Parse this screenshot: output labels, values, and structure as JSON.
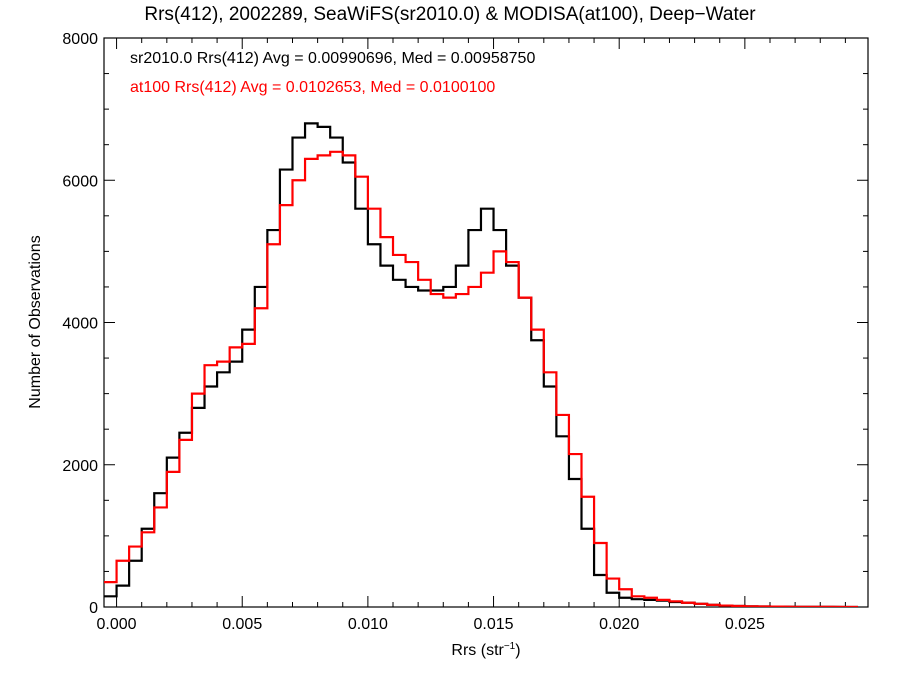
{
  "chart_data": {
    "type": "line",
    "title": "Rrs(412), 2002289, SeaWiFS(sr2010.0) & MODISA(at100), Deep−Water",
    "xlabel": "Rrs (str",
    "xlabel_sup": "−1",
    "xlabel_close": ")",
    "ylabel": "Number of Observations",
    "xlim": [
      -0.0005,
      0.0299
    ],
    "ylim": [
      0,
      8000
    ],
    "x_ticks": [
      {
        "value": 0.0,
        "label": "0.000"
      },
      {
        "value": 0.005,
        "label": "0.005"
      },
      {
        "value": 0.01,
        "label": "0.010"
      },
      {
        "value": 0.015,
        "label": "0.015"
      },
      {
        "value": 0.02,
        "label": "0.020"
      },
      {
        "value": 0.025,
        "label": "0.025"
      }
    ],
    "y_ticks": [
      {
        "value": 0,
        "label": "0"
      },
      {
        "value": 2000,
        "label": "2000"
      },
      {
        "value": 4000,
        "label": "4000"
      },
      {
        "value": 6000,
        "label": "6000"
      },
      {
        "value": 8000,
        "label": "8000"
      }
    ],
    "grid": false,
    "legend_position": "top-left",
    "annotations": [
      {
        "text": "sr2010.0 Rrs(412) Avg = 0.00990696, Med = 0.00958750",
        "color": "#000000"
      },
      {
        "text": "at100 Rrs(412) Avg = 0.0102653, Med = 0.0100100",
        "color": "#ff0000"
      }
    ],
    "series": [
      {
        "name": "sr2010.0",
        "color": "#000000",
        "x": [
          -0.0005,
          0.0,
          0.0005,
          0.001,
          0.0015,
          0.002,
          0.0025,
          0.003,
          0.0035,
          0.004,
          0.0045,
          0.005,
          0.0055,
          0.006,
          0.0065,
          0.007,
          0.0075,
          0.008,
          0.0085,
          0.009,
          0.0095,
          0.01,
          0.0105,
          0.011,
          0.0115,
          0.012,
          0.0125,
          0.013,
          0.0135,
          0.014,
          0.0145,
          0.015,
          0.0155,
          0.016,
          0.0165,
          0.017,
          0.0175,
          0.018,
          0.0185,
          0.019,
          0.0195,
          0.02,
          0.0205,
          0.021,
          0.0215,
          0.022,
          0.0225,
          0.023,
          0.0235,
          0.024,
          0.0245,
          0.025,
          0.0255,
          0.026,
          0.027,
          0.028,
          0.029
        ],
        "y": [
          150,
          300,
          650,
          1100,
          1600,
          2100,
          2450,
          2800,
          3100,
          3300,
          3450,
          3900,
          4500,
          5300,
          6150,
          6600,
          6800,
          6750,
          6600,
          6250,
          5600,
          5100,
          4800,
          4600,
          4500,
          4450,
          4450,
          4500,
          4800,
          5300,
          5600,
          5300,
          4800,
          4350,
          3750,
          3100,
          2400,
          1800,
          1100,
          450,
          200,
          130,
          110,
          100,
          90,
          70,
          60,
          45,
          30,
          20,
          15,
          10,
          8,
          5,
          3,
          2,
          1
        ]
      },
      {
        "name": "at100",
        "color": "#ff0000",
        "x": [
          -0.0005,
          0.0,
          0.0005,
          0.001,
          0.0015,
          0.002,
          0.0025,
          0.003,
          0.0035,
          0.004,
          0.0045,
          0.005,
          0.0055,
          0.006,
          0.0065,
          0.007,
          0.0075,
          0.008,
          0.0085,
          0.009,
          0.0095,
          0.01,
          0.0105,
          0.011,
          0.0115,
          0.012,
          0.0125,
          0.013,
          0.0135,
          0.014,
          0.0145,
          0.015,
          0.0155,
          0.016,
          0.0165,
          0.017,
          0.0175,
          0.018,
          0.0185,
          0.019,
          0.0195,
          0.02,
          0.0205,
          0.021,
          0.0215,
          0.022,
          0.0225,
          0.023,
          0.0235,
          0.024,
          0.0245,
          0.025,
          0.0255,
          0.026,
          0.027,
          0.028,
          0.029
        ],
        "y": [
          350,
          650,
          850,
          1050,
          1400,
          1900,
          2350,
          3000,
          3400,
          3450,
          3650,
          3700,
          4200,
          5100,
          5650,
          6000,
          6300,
          6350,
          6400,
          6350,
          6050,
          5600,
          5200,
          4950,
          4850,
          4600,
          4400,
          4350,
          4400,
          4500,
          4700,
          5000,
          4850,
          4350,
          3900,
          3300,
          2700,
          2150,
          1550,
          900,
          400,
          250,
          150,
          130,
          100,
          80,
          60,
          45,
          30,
          20,
          15,
          10,
          8,
          5,
          3,
          2,
          1
        ]
      }
    ]
  }
}
